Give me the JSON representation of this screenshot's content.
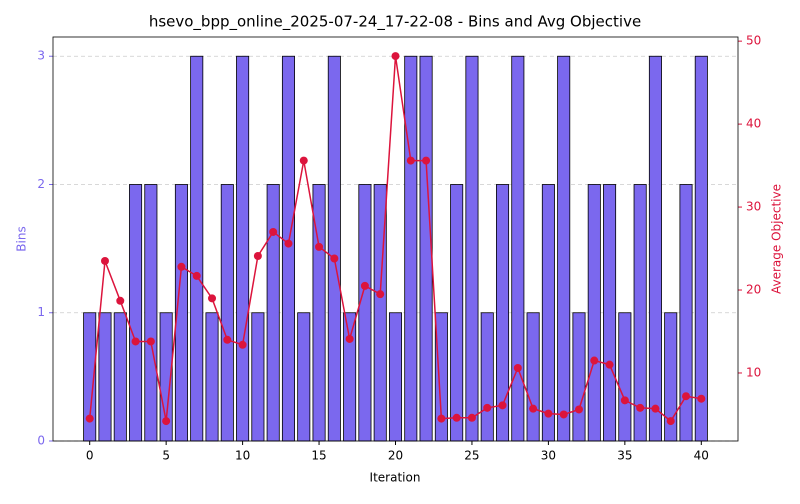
{
  "chart_data": {
    "type": "bar",
    "title": "hsevo_bpp_online_2025-07-24_17-22-08 - Bins and Avg Objective",
    "xlabel": "Iteration",
    "ylabel": "Bins",
    "y2label": "Average Objective",
    "x": [
      0,
      1,
      2,
      3,
      4,
      5,
      6,
      7,
      8,
      9,
      10,
      11,
      12,
      13,
      14,
      15,
      16,
      17,
      18,
      19,
      20,
      21,
      22,
      23,
      24,
      25,
      26,
      27,
      28,
      29,
      30,
      31,
      32,
      33,
      34,
      35,
      36,
      37,
      38,
      39,
      40
    ],
    "series": [
      {
        "type": "bar",
        "color": "#7b68ee",
        "values": [
          1,
          1,
          1,
          2,
          2,
          1,
          2,
          3,
          1,
          2,
          3,
          1,
          2,
          3,
          1,
          2,
          3,
          1,
          2,
          2,
          1,
          3,
          3,
          1,
          2,
          3,
          1,
          2,
          3,
          1,
          2,
          3,
          1,
          2,
          2,
          1,
          2,
          3,
          1,
          2,
          3
        ]
      },
      {
        "type": "line",
        "axis": "y2",
        "color": "#dc143c",
        "values": [
          4.5,
          23.5,
          18.7,
          13.8,
          13.8,
          4.2,
          22.8,
          21.7,
          19.0,
          14.0,
          13.4,
          24.1,
          27.0,
          25.6,
          35.6,
          25.2,
          23.8,
          14.1,
          20.5,
          19.5,
          48.2,
          35.6,
          35.6,
          4.5,
          4.6,
          4.6,
          5.8,
          6.1,
          10.6,
          5.7,
          5.1,
          5.0,
          5.6,
          11.5,
          11.0,
          6.7,
          5.8,
          5.7,
          4.2,
          7.2,
          6.9
        ]
      }
    ],
    "xlim": [
      -2.4,
      42.4
    ],
    "xticks": [
      0,
      5,
      10,
      15,
      20,
      25,
      30,
      35,
      40
    ],
    "ylim": [
      0,
      3.15
    ],
    "yticks": [
      0,
      1,
      2,
      3
    ],
    "y2lim": [
      1.8,
      50.5
    ],
    "y2ticks": [
      10,
      20,
      30,
      40,
      50
    ],
    "grid": true
  }
}
